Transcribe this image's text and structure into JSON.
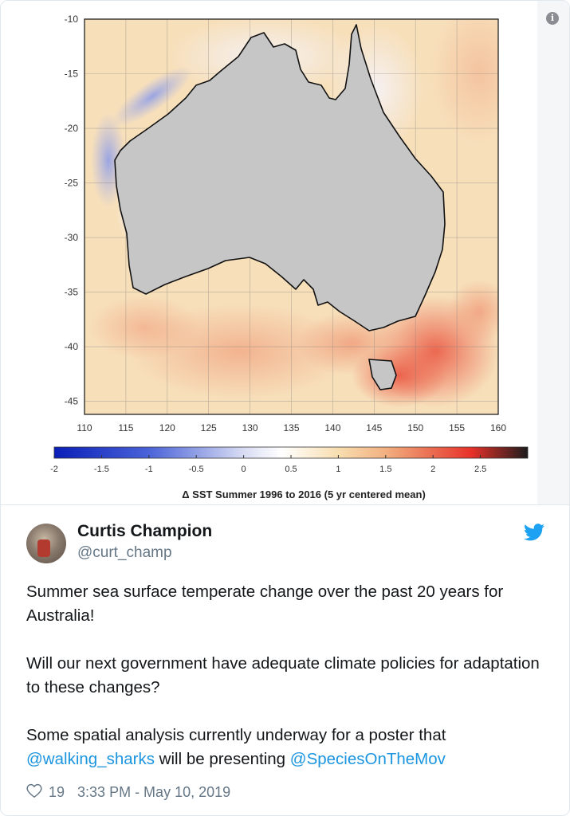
{
  "chart_data": {
    "type": "heatmap",
    "title": "",
    "colorbar_label": "Δ SST Summer 1996 to 2016 (5 yr centered mean)",
    "x_ticks": [
      "110",
      "115",
      "120",
      "125",
      "130",
      "135",
      "140",
      "145",
      "150",
      "155",
      "160"
    ],
    "y_ticks": [
      "-10",
      "-15",
      "-20",
      "-25",
      "-30",
      "-35",
      "-40",
      "-45"
    ],
    "xlim": [
      110,
      160
    ],
    "ylim": [
      -46.2,
      -10
    ],
    "colorbar_ticks": [
      "-2",
      "-1.5",
      "-1",
      "-0.5",
      "0",
      "0.5",
      "1",
      "1.5",
      "2",
      "2.5"
    ],
    "colorbar_range": [
      -2,
      3
    ],
    "colors": {
      "cold": "#0a1fb8",
      "neutral": "#ffffff",
      "warm": "#f2c38a",
      "hot": "#e8322a",
      "max": "#1c1c1c",
      "land": "#c6c6c6"
    }
  },
  "tweet": {
    "author_name": "Curtis Champion",
    "handle": "@curt_champ",
    "paragraphs": [
      "Summer sea surface temperate change over the past 20 years for Australia!",
      "Will our next government have adequate climate policies for adaptation to these changes?"
    ],
    "p3_text_1": "Some spatial analysis currently underway for a poster that ",
    "p3_link_1": "@walking_sharks",
    "p3_text_2": " will be presenting ",
    "p3_link_2": "@SpeciesOnTheMov",
    "likes": "19",
    "timestamp": "3:33 PM - May 10, 2019"
  },
  "icons": {
    "info": "i",
    "brand": "twitter-bird-icon",
    "like": "heart-icon"
  }
}
